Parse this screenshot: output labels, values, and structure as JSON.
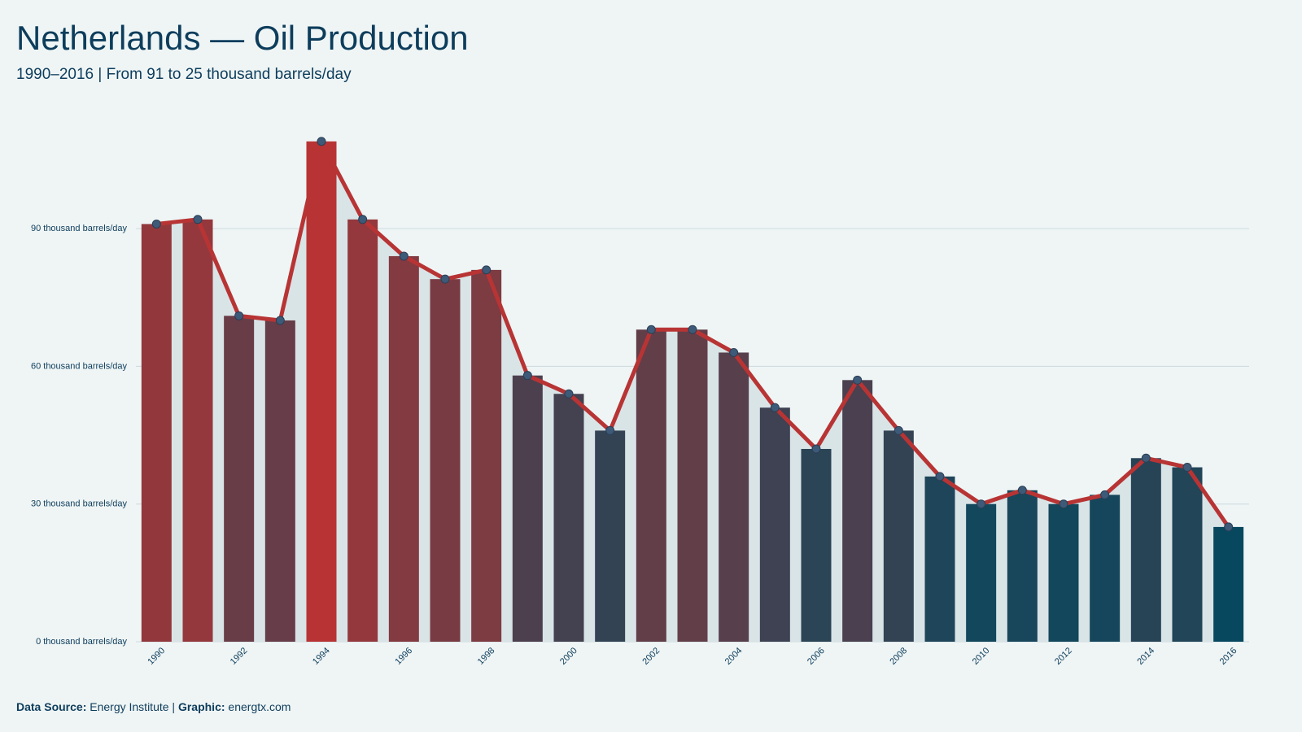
{
  "chart_data": {
    "type": "bar-line",
    "title": "Netherlands — Oil Production",
    "subtitle": "1990–2016 | From 91 to 25 thousand barrels/day",
    "categories": [
      "1990",
      null,
      "1992",
      null,
      "1994",
      null,
      "1996",
      null,
      "1998",
      null,
      "2000",
      null,
      "2002",
      null,
      "2004",
      null,
      "2006",
      null,
      "2008",
      null,
      "2010",
      null,
      "2012",
      null,
      "2014",
      null,
      "2016"
    ],
    "values": [
      91,
      92,
      71,
      70,
      109,
      92,
      84,
      79,
      81,
      58,
      54,
      46,
      68,
      68,
      63,
      51,
      42,
      57,
      46,
      36,
      30,
      33,
      30,
      32,
      40,
      38,
      25
    ],
    "color_low": "#07485f",
    "color_high": "#b83434",
    "line_color": "#b83434",
    "marker_color": "#3d5a78",
    "area_color": "#d9e4e7",
    "ylim": [
      0,
      115
    ],
    "yticks": [
      {
        "value": 0,
        "label": "0 thousand barrels/day"
      },
      {
        "value": 30,
        "label": "30 thousand barrels/day"
      },
      {
        "value": 60,
        "label": "60 thousand barrels/day"
      },
      {
        "value": 90,
        "label": "90 thousand barrels/day"
      }
    ],
    "grid": true,
    "footer": {
      "source_label": "Data Source:",
      "source": "Energy Institute |",
      "graphic_label": "Graphic:",
      "graphic": "energtx.com"
    }
  }
}
